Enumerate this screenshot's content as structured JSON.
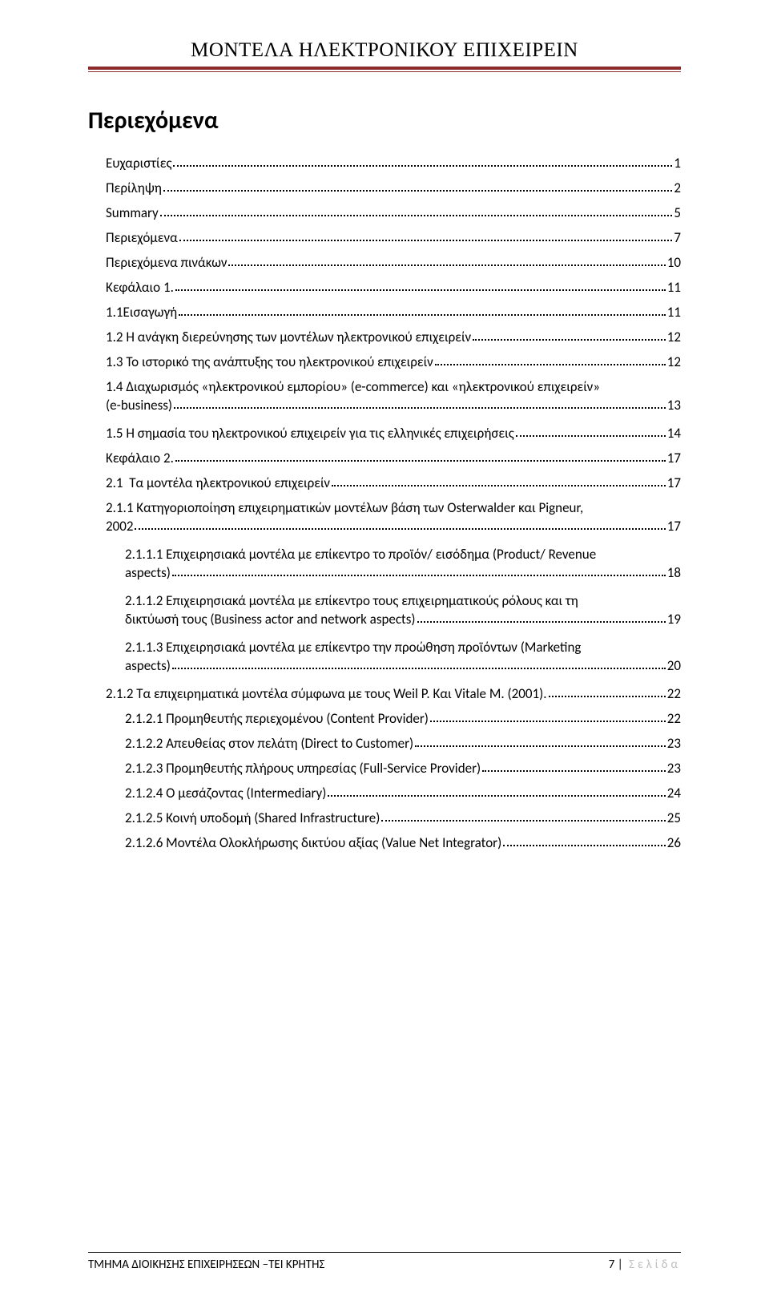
{
  "header": {
    "title": "ΜΟΝΤΕΛΑ ΗΛΕΚΤΡΟΝΙΚΟΥ ΕΠΙΧΕΙΡΕΙΝ"
  },
  "toc_heading": "Περιεχόμενα",
  "footer": {
    "left": "ΤΜΗΜΑ ΔΙΟΙΚΗΣΗΣ ΕΠΙΧΕΙΡΗΣΕΩΝ –ΤΕΙ ΚΡΗΤΗΣ",
    "page_number": "7",
    "page_label": "Σελίδα"
  },
  "entries": [
    {
      "label": "Ευχαριστίες",
      "page": "1",
      "indent": 0
    },
    {
      "label": "Περίληψη",
      "page": "2",
      "indent": 0
    },
    {
      "label": "Summary",
      "page": "5",
      "indent": 0
    },
    {
      "label": "Περιεχόμενα",
      "page": "7",
      "indent": 0
    },
    {
      "label": "Περιεχόμενα πινάκων",
      "page": "10",
      "indent": 0
    },
    {
      "label": "Κεφάλαιο 1.",
      "page": "11",
      "indent": 0
    },
    {
      "label": "1.1Εισαγωγή",
      "page": "11",
      "indent": 1
    },
    {
      "label": "1.2 Η ανάγκη διερεύνησης των μοντέλων ηλεκτρονικού επιχειρείν",
      "page": "12",
      "indent": 1
    },
    {
      "label": "1.3 Το ιστορικό της ανάπτυξης του ηλεκτρονικού επιχειρείν",
      "page": "12",
      "indent": 1
    },
    {
      "line1": "1.4 Διαχωρισμός «ηλεκτρονικού εμπορίου» (e-commerce) και «ηλεκτρονικού επιχειρείν»",
      "line2": "(e-business)",
      "page": "13",
      "indent": 1,
      "multiline": true
    },
    {
      "label": "1.5 Η σημασία του ηλεκτρονικού επιχειρείν για τις ελληνικές επιχειρήσεις",
      "page": "14",
      "indent": 1
    },
    {
      "label": "Κεφάλαιο 2.",
      "page": "17",
      "indent": 0
    },
    {
      "label": "2.1  Τα μοντέλα ηλεκτρονικού επιχειρείν",
      "page": "17",
      "indent": 1
    },
    {
      "line1": "2.1.1 Κατηγοριοποίηση επιχειρηματικών μοντέλων βάση των Osterwalder και Pigneur,",
      "line2": "2002",
      "page": "17",
      "indent": 1,
      "multiline": true
    },
    {
      "line1": "2.1.1.1 Επιχειρησιακά μοντέλα με επίκεντρο το προϊόν/ εισόδημα (Product/ Revenue",
      "line2": "aspects)",
      "page": "18",
      "indent": 2,
      "multiline": true
    },
    {
      "line1": "2.1.1.2 Επιχειρησιακά μοντέλα με επίκεντρο τους επιχειρηματικούς ρόλους και τη",
      "line2": "δικτύωσή τους (Business actor and network aspects)",
      "page": "19",
      "indent": 2,
      "multiline": true
    },
    {
      "line1": "2.1.1.3 Επιχειρησιακά μοντέλα με επίκεντρο την προώθηση προϊόντων (Marketing",
      "line2": "aspects)",
      "page": "20",
      "indent": 2,
      "multiline": true
    },
    {
      "label": "2.1.2 Τα επιχειρηματικά μοντέλα σύμφωνα με τους Weil P. Και Vitale M. (2001).",
      "page": "22",
      "indent": 1
    },
    {
      "label": "2.1.2.1 Προμηθευτής περιεχομένου (Content Provider)",
      "page": "22",
      "indent": 2
    },
    {
      "label": "2.1.2.2 Απευθείας στον πελάτη (Direct to Customer)",
      "page": "23",
      "indent": 2
    },
    {
      "label": "2.1.2.3 Προμηθευτής πλήρους υπηρεσίας (Full-Service Provider)",
      "page": "23",
      "indent": 2
    },
    {
      "label": "2.1.2.4 Ο μεσάζοντας (Intermediary)",
      "page": "24",
      "indent": 2
    },
    {
      "label": "2.1.2.5 Κοινή υποδομή (Shared Infrastructure)",
      "page": "25",
      "indent": 2
    },
    {
      "label": "2.1.2.6 Μοντέλα Ολοκλήρωσης δικτύου αξίας (Value Net Integrator)",
      "page": "26",
      "indent": 2
    }
  ]
}
